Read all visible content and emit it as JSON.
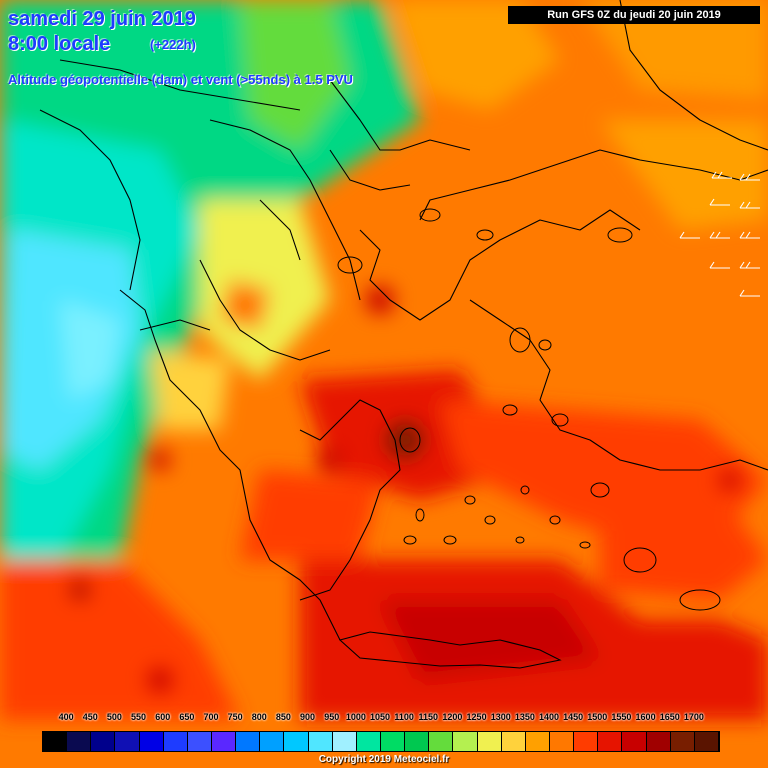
{
  "header": {
    "date": "samedi 29 juin 2019",
    "time": "8:00 locale",
    "lead": "(+222h)",
    "parameter": "Altitude géopotentielle (dam) et vent (>55nds) à 1.5 PVU",
    "run": "Run GFS 0Z du jeudi 20 juin 2019"
  },
  "legend": {
    "labels": [
      "400",
      "450",
      "500",
      "550",
      "600",
      "650",
      "700",
      "750",
      "800",
      "850",
      "900",
      "950",
      "1000",
      "1050",
      "1100",
      "1150",
      "1200",
      "1250",
      "1300",
      "1350",
      "1400",
      "1450",
      "1500",
      "1550",
      "1600",
      "1650",
      "1700"
    ],
    "colors": [
      "#000000",
      "#0a0a50",
      "#00008c",
      "#1010b4",
      "#0000e6",
      "#1e3cff",
      "#3c50ff",
      "#5a28ff",
      "#0078ff",
      "#00a0ff",
      "#00c8ff",
      "#50e6ff",
      "#a0f0ff",
      "#00e6a0",
      "#00dc64",
      "#00c850",
      "#64dc3c",
      "#b4f050",
      "#f0f050",
      "#ffd23c",
      "#ffa000",
      "#ff7800",
      "#ff3c00",
      "#e61400",
      "#c80000",
      "#a00000",
      "#781e00",
      "#5a1400"
    ]
  },
  "footer": {
    "copyright": "Copyright 2019 Meteociel.fr"
  },
  "map": {
    "region": "Greece / Balkans / Aegean",
    "wind_barb_icons": "wind-barb-icon"
  }
}
